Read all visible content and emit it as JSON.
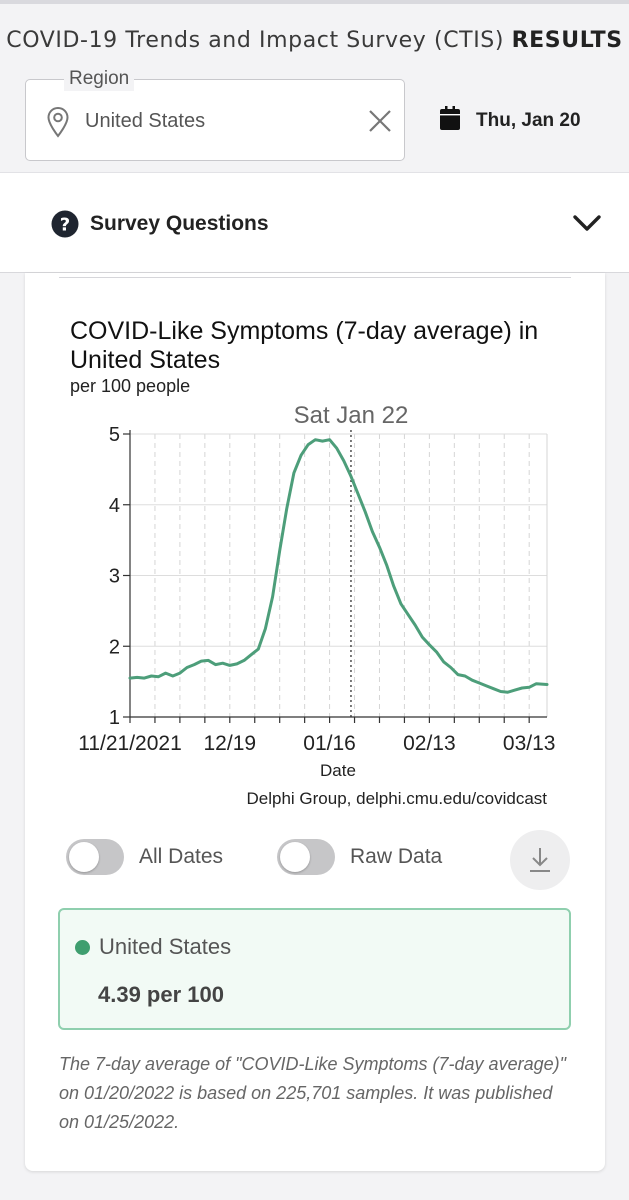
{
  "header": {
    "title_main": "COVID-19 Trends and Impact Survey (CTIS)",
    "title_strong": "RESULTS"
  },
  "region": {
    "legend": "Region",
    "value": "United States"
  },
  "date_picker": {
    "label": "Thu, Jan 20"
  },
  "survey_questions": {
    "label": "Survey Questions"
  },
  "chart_data": {
    "type": "line",
    "title": "COVID-Like Symptoms (7-day average) in United States",
    "subtitle": "per 100 people",
    "xlabel": "Date",
    "ylabel": "",
    "credit": "Delphi Group, delphi.cmu.edu/covidcast",
    "hover_label": "Sat Jan 22",
    "hover_date": "2022-01-22",
    "x_range": [
      "2021-11-21",
      "2022-03-18"
    ],
    "ylim": [
      1,
      5
    ],
    "y_ticks": [
      1,
      2,
      3,
      4,
      5
    ],
    "x_tick_labels": [
      {
        "date": "2021-11-21",
        "label": "11/21/2021"
      },
      {
        "date": "2021-12-19",
        "label": "12/19"
      },
      {
        "date": "2022-01-16",
        "label": "01/16"
      },
      {
        "date": "2022-02-13",
        "label": "02/13"
      },
      {
        "date": "2022-03-13",
        "label": "03/13"
      }
    ],
    "grid": "vertical-dashed-weekly",
    "line_color": "#4d9e7a",
    "series": [
      {
        "name": "United States",
        "points": [
          [
            "2021-11-21",
            1.55
          ],
          [
            "2021-11-23",
            1.56
          ],
          [
            "2021-11-25",
            1.55
          ],
          [
            "2021-11-27",
            1.58
          ],
          [
            "2021-11-29",
            1.57
          ],
          [
            "2021-12-01",
            1.62
          ],
          [
            "2021-12-03",
            1.58
          ],
          [
            "2021-12-05",
            1.62
          ],
          [
            "2021-12-07",
            1.7
          ],
          [
            "2021-12-09",
            1.74
          ],
          [
            "2021-12-11",
            1.79
          ],
          [
            "2021-12-13",
            1.8
          ],
          [
            "2021-12-15",
            1.74
          ],
          [
            "2021-12-17",
            1.76
          ],
          [
            "2021-12-19",
            1.73
          ],
          [
            "2021-12-21",
            1.75
          ],
          [
            "2021-12-23",
            1.8
          ],
          [
            "2021-12-25",
            1.88
          ],
          [
            "2021-12-27",
            1.96
          ],
          [
            "2021-12-29",
            2.25
          ],
          [
            "2021-12-31",
            2.7
          ],
          [
            "2022-01-02",
            3.35
          ],
          [
            "2022-01-04",
            3.95
          ],
          [
            "2022-01-06",
            4.45
          ],
          [
            "2022-01-08",
            4.7
          ],
          [
            "2022-01-10",
            4.85
          ],
          [
            "2022-01-12",
            4.92
          ],
          [
            "2022-01-14",
            4.9
          ],
          [
            "2022-01-16",
            4.92
          ],
          [
            "2022-01-18",
            4.8
          ],
          [
            "2022-01-20",
            4.62
          ],
          [
            "2022-01-22",
            4.4
          ],
          [
            "2022-01-24",
            4.15
          ],
          [
            "2022-01-26",
            3.9
          ],
          [
            "2022-01-28",
            3.62
          ],
          [
            "2022-01-30",
            3.4
          ],
          [
            "2022-02-01",
            3.15
          ],
          [
            "2022-02-03",
            2.85
          ],
          [
            "2022-02-05",
            2.6
          ],
          [
            "2022-02-07",
            2.45
          ],
          [
            "2022-02-09",
            2.3
          ],
          [
            "2022-02-11",
            2.13
          ],
          [
            "2022-02-13",
            2.02
          ],
          [
            "2022-02-15",
            1.92
          ],
          [
            "2022-02-17",
            1.78
          ],
          [
            "2022-02-19",
            1.7
          ],
          [
            "2022-02-21",
            1.6
          ],
          [
            "2022-02-23",
            1.58
          ],
          [
            "2022-02-25",
            1.52
          ],
          [
            "2022-02-27",
            1.48
          ],
          [
            "2022-03-01",
            1.44
          ],
          [
            "2022-03-03",
            1.4
          ],
          [
            "2022-03-05",
            1.36
          ],
          [
            "2022-03-07",
            1.35
          ],
          [
            "2022-03-09",
            1.38
          ],
          [
            "2022-03-11",
            1.41
          ],
          [
            "2022-03-13",
            1.42
          ],
          [
            "2022-03-15",
            1.47
          ],
          [
            "2022-03-18",
            1.46
          ]
        ]
      }
    ]
  },
  "toggles": {
    "all_dates": {
      "label": "All Dates",
      "on": false
    },
    "raw_data": {
      "label": "Raw Data",
      "on": false
    }
  },
  "legend_box": {
    "color": "#3f9e6f",
    "name": "United States",
    "value": "4.39 per 100"
  },
  "note": "The 7-day average of \"COVID-Like Symptoms (7-day average)\" on 01/20/2022 is based on 225,701 samples. It was published on 01/25/2022.",
  "icons": {
    "region": "map-pin-icon",
    "clear": "close-icon",
    "date": "calendar-icon",
    "survey": "question-circle-icon",
    "expand": "chevron-down-icon",
    "download": "download-icon"
  }
}
